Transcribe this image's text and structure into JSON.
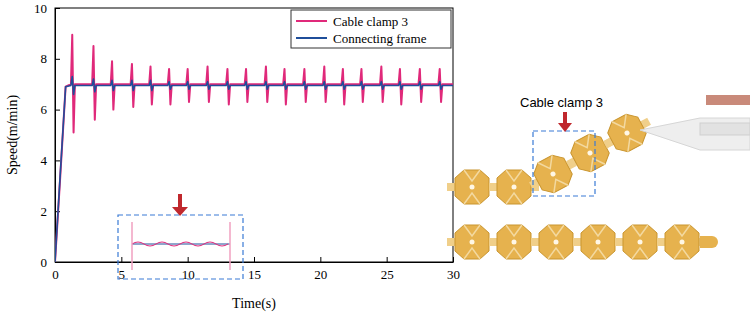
{
  "chart_data": {
    "type": "line",
    "x_label": "Time(s)",
    "y_label": "Speed(m/min)",
    "x": [
      0,
      0.4,
      0.8,
      1.2,
      1.3,
      1.4,
      1.5,
      2.8,
      2.9,
      3.0,
      3.1,
      4.2,
      4.3,
      4.4,
      4.5,
      5.7,
      5.8,
      5.9,
      6.0,
      7.1,
      7.2,
      7.3,
      7.4,
      8.5,
      8.6,
      8.7,
      8.8,
      9.9,
      10.0,
      10.1,
      10.2,
      11.4,
      11.5,
      11.6,
      11.7,
      12.9,
      13.0,
      13.1,
      13.2,
      14.3,
      14.4,
      14.5,
      14.6,
      15.8,
      15.9,
      16.0,
      16.1,
      17.2,
      17.3,
      17.4,
      17.5,
      18.7,
      18.8,
      18.9,
      19.0,
      20.2,
      20.3,
      20.4,
      20.5,
      21.6,
      21.7,
      21.8,
      21.9,
      23.0,
      23.1,
      23.2,
      23.3,
      24.5,
      24.6,
      24.7,
      24.8,
      25.9,
      26.0,
      26.1,
      26.2,
      27.4,
      27.5,
      27.6,
      27.7,
      28.9,
      29.0,
      29.1,
      29.2,
      30
    ],
    "series": [
      {
        "name": "Cable clamp 3",
        "color": "#e0297a",
        "values": [
          0,
          3.4,
          6.9,
          7.0,
          8.95,
          5.1,
          7.0,
          7.0,
          8.5,
          5.6,
          7.0,
          7.0,
          7.9,
          6.0,
          7.0,
          7.0,
          7.8,
          6.1,
          7.0,
          7.0,
          7.7,
          6.2,
          7.0,
          7.0,
          7.6,
          6.2,
          7.0,
          7.0,
          7.6,
          6.3,
          7.0,
          7.0,
          7.7,
          6.3,
          7.0,
          7.0,
          7.6,
          6.2,
          7.0,
          7.0,
          7.6,
          6.3,
          7.0,
          7.0,
          7.7,
          6.3,
          7.0,
          7.0,
          7.6,
          6.2,
          7.0,
          7.0,
          7.6,
          6.3,
          7.0,
          7.0,
          7.7,
          6.3,
          7.0,
          7.0,
          7.6,
          6.2,
          7.0,
          7.0,
          7.6,
          6.3,
          7.0,
          7.0,
          7.7,
          6.3,
          7.0,
          7.0,
          7.6,
          6.2,
          7.0,
          7.0,
          7.6,
          6.3,
          7.0,
          7.0,
          7.6,
          6.3,
          7.0,
          7.0
        ]
      },
      {
        "name": "Connecting frame",
        "color": "#1f4e9a",
        "values": [
          0,
          3.5,
          6.9,
          6.95,
          7.3,
          6.6,
          6.95,
          6.95,
          7.2,
          6.7,
          6.95,
          6.95,
          7.15,
          6.75,
          6.95,
          6.95,
          7.15,
          6.75,
          6.95,
          6.95,
          7.15,
          6.75,
          6.95,
          6.95,
          7.1,
          6.8,
          6.95,
          6.95,
          7.1,
          6.8,
          6.95,
          6.95,
          7.1,
          6.8,
          6.95,
          6.95,
          7.1,
          6.8,
          6.95,
          6.95,
          7.1,
          6.8,
          6.95,
          6.95,
          7.1,
          6.8,
          6.95,
          6.95,
          7.1,
          6.8,
          6.95,
          6.95,
          7.1,
          6.8,
          6.95,
          6.95,
          7.1,
          6.8,
          6.95,
          6.95,
          7.1,
          6.8,
          6.95,
          6.95,
          7.1,
          6.8,
          6.95,
          6.95,
          7.1,
          6.8,
          6.95,
          6.95,
          7.1,
          6.8,
          6.95,
          6.95,
          7.1,
          6.8,
          6.95,
          6.95,
          7.1,
          6.8,
          6.95,
          6.95
        ]
      }
    ],
    "xlim": [
      0,
      30
    ],
    "ylim": [
      0,
      10
    ],
    "xticks": [
      0,
      5,
      10,
      15,
      20,
      25,
      30
    ],
    "yticks": [
      0,
      2,
      4,
      6,
      8,
      10
    ],
    "grid": false,
    "legend": "upper right",
    "annotations": [
      "Cable clamp 3"
    ]
  }
}
